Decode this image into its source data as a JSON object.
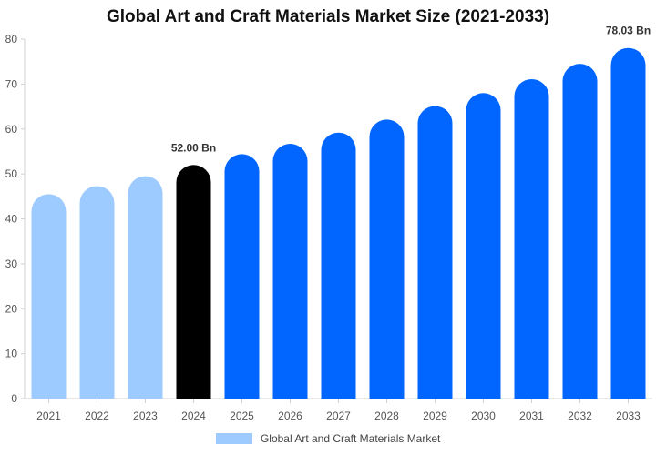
{
  "chart_data": {
    "type": "bar",
    "title": "Global Art and Craft Materials Market Size (2021-2033)",
    "categories": [
      "2021",
      "2022",
      "2023",
      "2024",
      "2025",
      "2026",
      "2027",
      "2028",
      "2029",
      "2030",
      "2031",
      "2032",
      "2033"
    ],
    "series": [
      {
        "name": "Global Art and Craft Materials Market",
        "values": [
          45.5,
          47.3,
          49.5,
          52.0,
          54.4,
          56.7,
          59.2,
          62.1,
          65.1,
          68.0,
          71.1,
          74.5,
          78.03
        ]
      }
    ],
    "data_labels": [
      {
        "category": "2024",
        "text": "52.00 Bn"
      },
      {
        "category": "2033",
        "text": "78.03 Bn"
      }
    ],
    "ylim": [
      0,
      80
    ],
    "yticks": [
      0,
      10,
      20,
      30,
      40,
      50,
      60,
      70,
      80
    ],
    "bar_colors": {
      "historical": "#9ecbff",
      "base_year": "#000000",
      "forecast": "#0066ff"
    },
    "legend": {
      "label": "Global Art and Craft Materials Market",
      "color": "#9ecbff",
      "position": "bottom"
    },
    "grid": false
  }
}
